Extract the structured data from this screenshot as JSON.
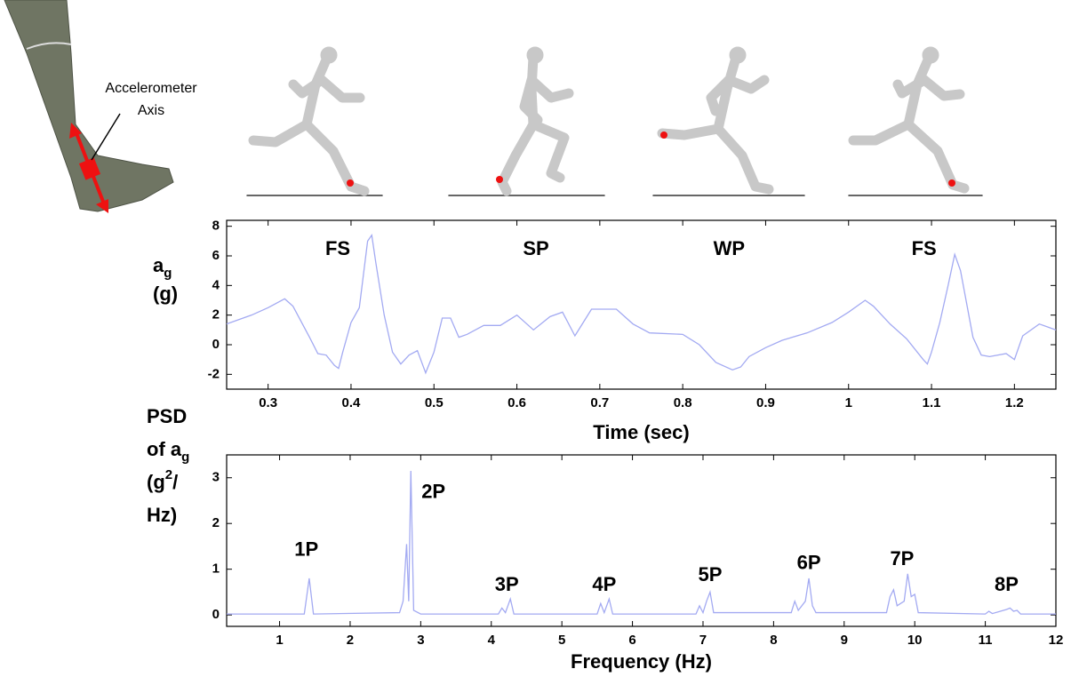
{
  "figure": {
    "leg_label": [
      "Accelerometer",
      "Axis"
    ]
  },
  "chart_data": [
    {
      "type": "line",
      "xlabel": "Time (sec)",
      "ylabel_lines": [
        [
          "a",
          {
            "text": "g",
            "script": "sub"
          }
        ],
        [
          "(g)"
        ]
      ],
      "color": "#a3aaf2",
      "xlim": [
        0.25,
        1.25
      ],
      "ylim": [
        -3,
        8.4
      ],
      "xticks": [
        0.3,
        0.4,
        0.5,
        0.6,
        0.7,
        0.8,
        0.9,
        1,
        1.1,
        1.2
      ],
      "yticks": [
        -2,
        0,
        2,
        4,
        6,
        8
      ],
      "x": [
        0.25,
        0.28,
        0.3,
        0.32,
        0.33,
        0.35,
        0.36,
        0.37,
        0.38,
        0.385,
        0.39,
        0.4,
        0.41,
        0.42,
        0.425,
        0.43,
        0.44,
        0.45,
        0.46,
        0.47,
        0.48,
        0.49,
        0.5,
        0.51,
        0.52,
        0.53,
        0.54,
        0.56,
        0.58,
        0.6,
        0.62,
        0.64,
        0.655,
        0.67,
        0.68,
        0.69,
        0.72,
        0.74,
        0.76,
        0.8,
        0.82,
        0.84,
        0.86,
        0.87,
        0.88,
        0.9,
        0.92,
        0.95,
        0.98,
        1,
        1.02,
        1.03,
        1.05,
        1.07,
        1.09,
        1.095,
        1.1,
        1.11,
        1.12,
        1.128,
        1.135,
        1.15,
        1.16,
        1.17,
        1.19,
        1.2,
        1.21,
        1.23,
        1.24,
        1.25
      ],
      "values": [
        1.4,
        2.0,
        2.5,
        3.1,
        2.6,
        0.5,
        -0.6,
        -0.7,
        -1.4,
        -1.6,
        -0.5,
        1.5,
        2.5,
        7.0,
        7.4,
        5.5,
        2.0,
        -0.5,
        -1.3,
        -0.7,
        -0.4,
        -1.9,
        -0.5,
        1.8,
        1.8,
        0.5,
        0.7,
        1.3,
        1.3,
        2.0,
        1.0,
        1.9,
        2.2,
        0.6,
        1.5,
        2.4,
        2.4,
        1.4,
        0.8,
        0.7,
        0.0,
        -1.2,
        -1.7,
        -1.5,
        -0.8,
        -0.2,
        0.3,
        0.8,
        1.5,
        2.2,
        3.0,
        2.6,
        1.4,
        0.4,
        -1.0,
        -1.3,
        -0.5,
        1.5,
        4.0,
        6.1,
        5.0,
        0.5,
        -0.7,
        -0.8,
        -0.6,
        -1.0,
        0.6,
        1.4,
        1.2,
        1.0
      ],
      "annotations": [
        {
          "text": "FS",
          "x": 0.384,
          "y": 6.4
        },
        {
          "text": "SP",
          "x": 0.623,
          "y": 6.4
        },
        {
          "text": "WP",
          "x": 0.856,
          "y": 6.4
        },
        {
          "text": "FS",
          "x": 1.091,
          "y": 6.4
        }
      ]
    },
    {
      "type": "line",
      "xlabel": "Frequency (Hz)",
      "ylabel_lines": [
        [
          "PSD"
        ],
        [
          "of a",
          {
            "text": "g",
            "script": "sub"
          }
        ],
        [
          "(g",
          {
            "text": "2",
            "script": "super"
          },
          "/"
        ],
        [
          "Hz)"
        ]
      ],
      "color": "#a3aaf2",
      "xlim": [
        0.25,
        12
      ],
      "ylim": [
        -0.25,
        3.5
      ],
      "xticks": [
        1,
        2,
        3,
        4,
        5,
        6,
        7,
        8,
        9,
        10,
        11,
        12
      ],
      "yticks": [
        0,
        1,
        2,
        3
      ],
      "x": [
        0.25,
        1.35,
        1.42,
        1.48,
        2.7,
        2.75,
        2.8,
        2.83,
        2.86,
        2.9,
        3.0,
        4.1,
        4.15,
        4.2,
        4.27,
        4.32,
        5.5,
        5.55,
        5.6,
        5.67,
        5.72,
        6.9,
        6.95,
        7.0,
        7.05,
        7.1,
        7.15,
        8.25,
        8.3,
        8.35,
        8.45,
        8.5,
        8.55,
        8.6,
        9.6,
        9.65,
        9.7,
        9.75,
        9.85,
        9.9,
        9.95,
        10.0,
        10.05,
        11.0,
        11.05,
        11.1,
        11.3,
        11.35,
        11.4,
        11.45,
        11.5,
        12
      ],
      "values": [
        0.02,
        0.02,
        0.8,
        0.02,
        0.05,
        0.3,
        1.55,
        0.3,
        3.15,
        0.1,
        0.02,
        0.02,
        0.15,
        0.05,
        0.35,
        0.02,
        0.02,
        0.25,
        0.05,
        0.35,
        0.02,
        0.02,
        0.2,
        0.05,
        0.3,
        0.5,
        0.05,
        0.05,
        0.3,
        0.1,
        0.3,
        0.8,
        0.2,
        0.05,
        0.05,
        0.4,
        0.55,
        0.2,
        0.3,
        0.9,
        0.4,
        0.45,
        0.05,
        0.02,
        0.08,
        0.03,
        0.12,
        0.15,
        0.08,
        0.1,
        0.02,
        0.02
      ],
      "annotations": [
        {
          "text": "1P",
          "x": 1.38,
          "y": 1.41
        },
        {
          "text": "2P",
          "x": 3.18,
          "y": 2.67
        },
        {
          "text": "3P",
          "x": 4.22,
          "y": 0.64
        },
        {
          "text": "4P",
          "x": 5.6,
          "y": 0.64
        },
        {
          "text": "5P",
          "x": 7.1,
          "y": 0.85
        },
        {
          "text": "6P",
          "x": 8.5,
          "y": 1.12
        },
        {
          "text": "7P",
          "x": 9.82,
          "y": 1.2
        },
        {
          "text": "8P",
          "x": 11.3,
          "y": 0.64
        }
      ]
    }
  ]
}
